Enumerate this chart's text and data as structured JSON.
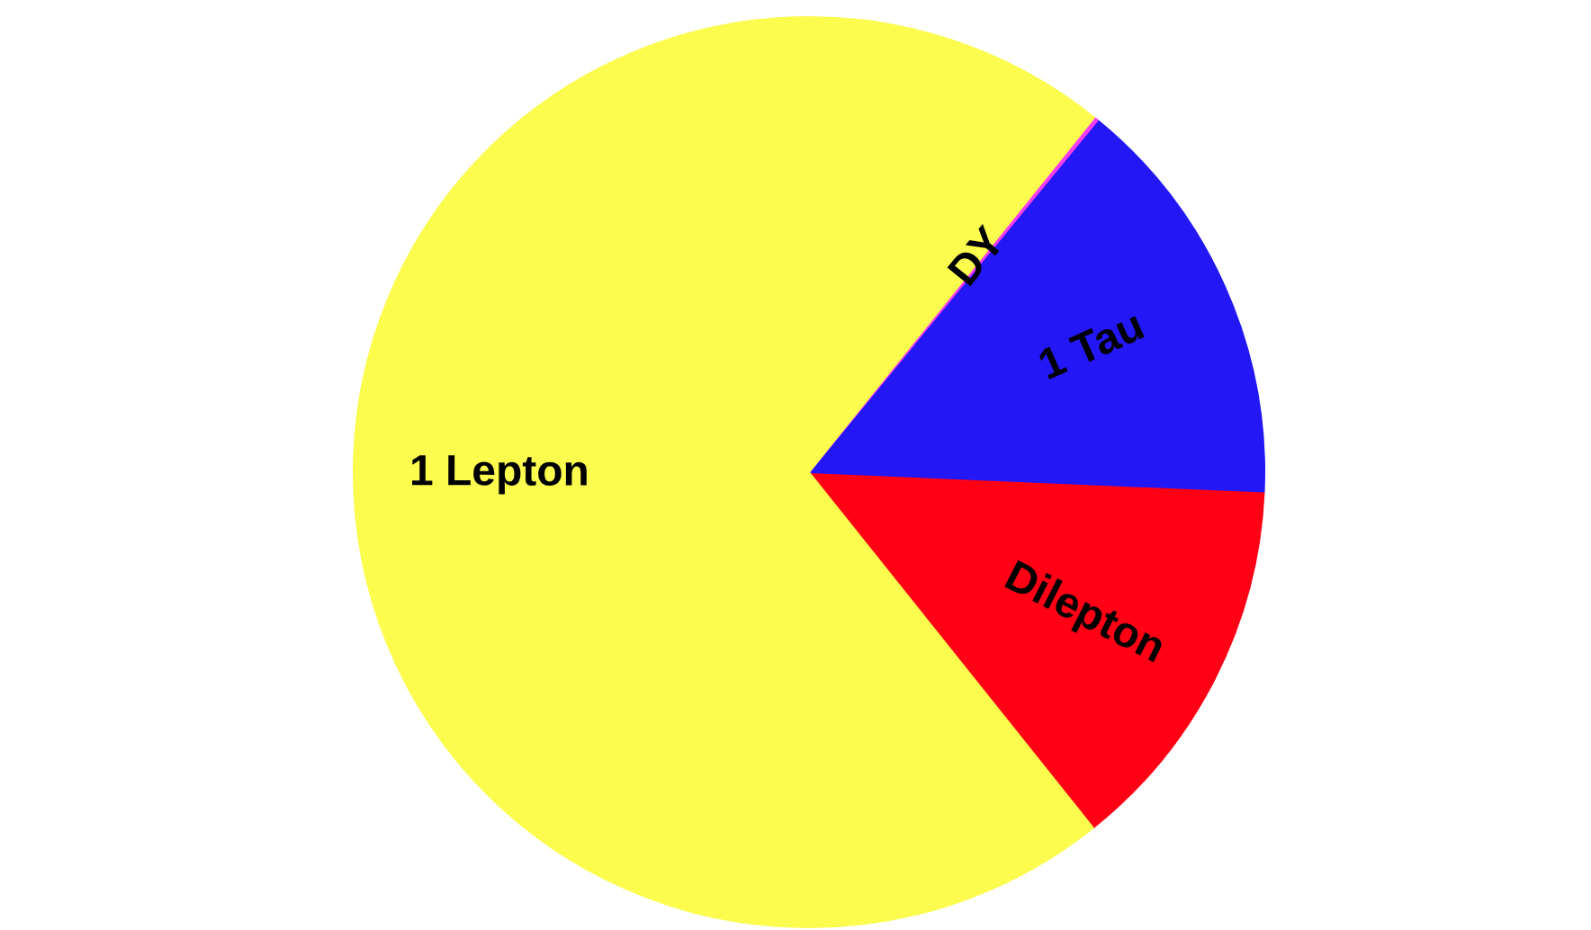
{
  "chart_data": {
    "type": "pie",
    "categories": [
      "Dilepton",
      "1 Tau",
      "DY",
      "1 Lepton"
    ],
    "values": [
      13.6,
      14.75,
      0.15,
      71.5
    ],
    "colors": [
      "#ff0015",
      "#2318f5",
      "#f53cf0",
      "#fcfc4f"
    ]
  }
}
